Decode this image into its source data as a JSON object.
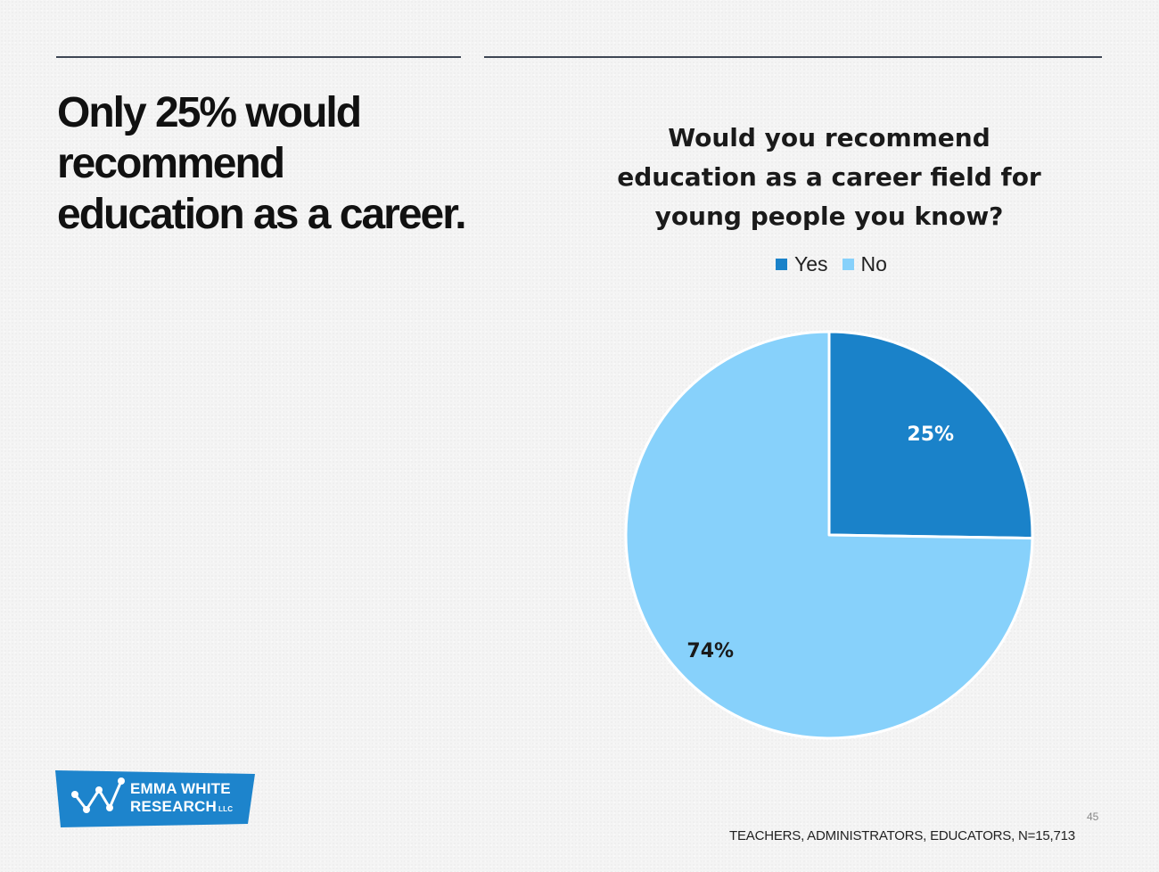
{
  "headline": "Only 25% would recommend education as a career.",
  "chart_data": {
    "type": "pie",
    "title": "Would you recommend education as a career field for young people you know?",
    "legend_position": "top",
    "categories": [
      "Yes",
      "No"
    ],
    "values": [
      25,
      74
    ],
    "labels": [
      "25%",
      "74%"
    ],
    "colors": [
      "#1a82c9",
      "#87d1fb"
    ]
  },
  "logo": {
    "line1": "EMMA WHITE",
    "line2": "RESEARCH",
    "suffix": "LLC",
    "color": "#1d84cc"
  },
  "page_number": "45",
  "source_note": "TEACHERS, ADMINISTRATORS, EDUCATORS, N=15,713"
}
